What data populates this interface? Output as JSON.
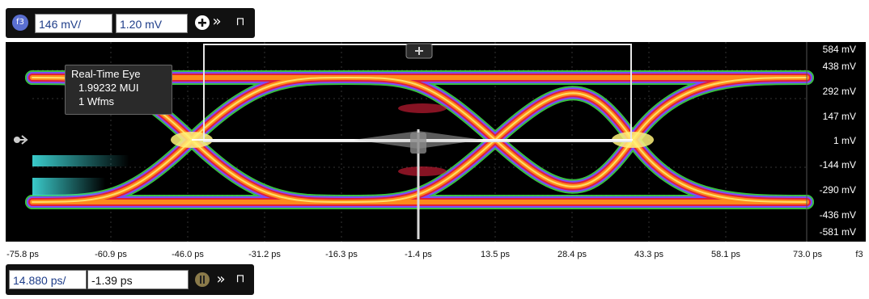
{
  "top_toolbar": {
    "channel_badge": "f3",
    "vertical_scale": "146 mV/",
    "vertical_offset": "1.20 mV",
    "icons": [
      "add-measurement-icon",
      "expand-chevron-icon",
      "pin-icon"
    ]
  },
  "info_box": {
    "title": "Real-Time Eye",
    "mui": "1.99232 MUI",
    "wfms": "1 Wfms"
  },
  "y_axis": {
    "labels": [
      "584 mV",
      "438 mV",
      "292 mV",
      "147 mV",
      "1 mV",
      "-144 mV",
      "-290 mV",
      "-436 mV",
      "-581 mV"
    ]
  },
  "x_axis": {
    "labels": [
      "-75.8 ps",
      "-60.9 ps",
      "-46.0 ps",
      "-31.2 ps",
      "-16.3 ps",
      "-1.4 ps",
      "13.5 ps",
      "28.4 ps",
      "43.3 ps",
      "58.1 ps",
      "73.0 ps"
    ],
    "channel": "f3"
  },
  "bottom_toolbar": {
    "horizontal_scale": "14.880 ps/",
    "horizontal_position": "-1.39 ps",
    "icons": [
      "run-stop-icon",
      "expand-chevron-icon",
      "pin-icon"
    ]
  },
  "colors": {
    "eye_core": "#fff27a",
    "eye_mid": "#ff8a1a",
    "eye_outer": "#e0203a",
    "eye_edge": "#7a4cff",
    "eye_halo": "#3ed44a",
    "cyan_trace": "#40e0e0",
    "plot_background": "#000000"
  }
}
